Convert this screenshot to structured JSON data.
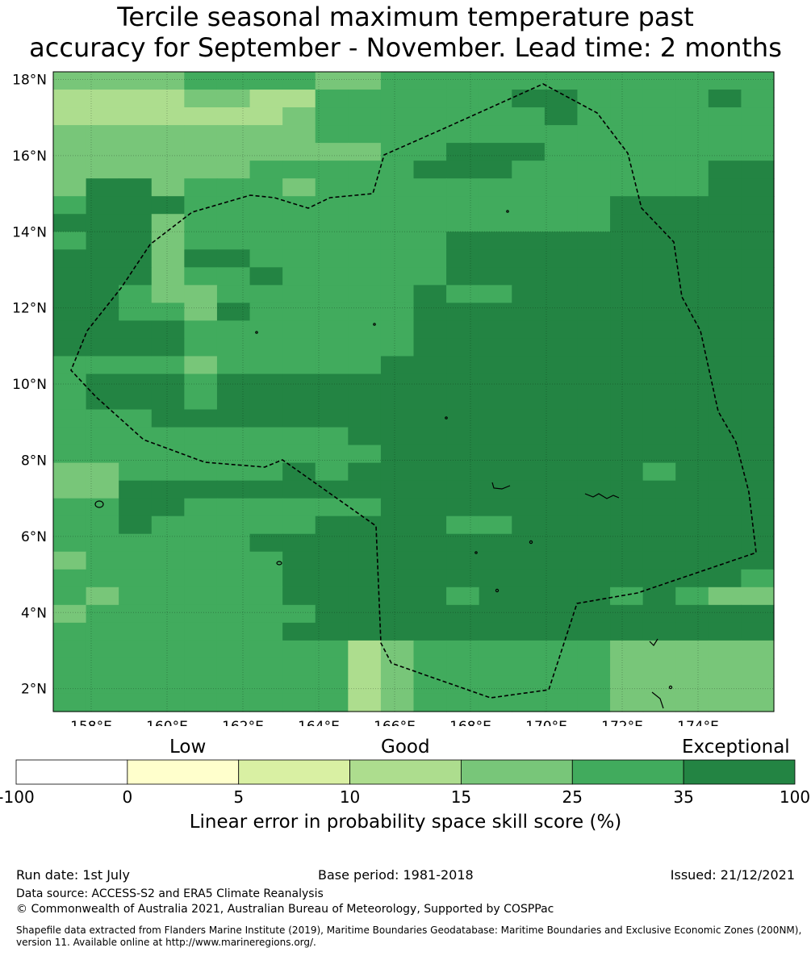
{
  "title_line1": "Tercile seasonal maximum temperature past",
  "title_line2": "accuracy for September - November. Lead time: 2 months",
  "map": {
    "lon_labels": [
      "158°E",
      "160°E",
      "162°E",
      "164°E",
      "166°E",
      "168°E",
      "170°E",
      "172°E",
      "174°E"
    ],
    "lat_labels": [
      "18°N",
      "16°N",
      "14°N",
      "12°N",
      "10°N",
      "8°N",
      "6°N",
      "4°N",
      "2°N"
    ],
    "lon_range": [
      157,
      176
    ],
    "lat_range": [
      1.4,
      18.2
    ],
    "grid_rows": [
      "3333444433444444444444",
      "2222332244444455444454",
      "2222222344444445444444",
      "3333333344444444444444",
      "3333333333445554444444",
      "3333334444455544444455",
      "3553444344444444444455",
      "4555444444444444455555",
      "5553444444444444455555",
      "4553444444445555555555",
      "5553554444445555555555",
      "5553445444445555555555",
      "5543344444454455555555",
      "5544354444455555555555",
      "5555444444455555555555",
      "5555444444455555555555",
      "4444344444555555555555",
      "4555455555555555555555",
      "4555455555555555555555",
      "4445555555555555555555",
      "4444444445555555555555",
      "4444444444555555555555",
      "3344444545555555554555",
      "3355555555555555555555",
      "4455444444555555555555",
      "4454444455554455555555",
      "4444445555555555555555",
      "3444444555555555555555",
      "4444444555555555555554",
      "4344444555554555545433",
      "3444444455555555555555",
      "4444444555555555555555",
      "4444444442344444433333",
      "4444444442344444433333",
      "4444444442344444433333",
      "4444444442344444433333"
    ]
  },
  "colorbar": {
    "categories": [
      "Low",
      "Good",
      "Exceptional"
    ],
    "ticks": [
      "-100",
      "0",
      "5",
      "10",
      "15",
      "25",
      "35",
      "100"
    ],
    "colors": [
      "#ffffff",
      "#ffffcc",
      "#d9f0a3",
      "#addd8e",
      "#78c679",
      "#41ab5d",
      "#238443"
    ],
    "label": "Linear error in probability space skill score (%)"
  },
  "footer": {
    "run_date": "Run date: 1st July",
    "base_period": "Base period: 1981-2018",
    "issued": "Issued: 21/12/2021",
    "data_source": "Data source: ACCESS-S2 and ERA5 Climate Reanalysis",
    "copyright": "© Commonwealth of Australia 2021, Australian Bureau of Meteorology, Supported by COSPPac",
    "shapefile": "Shapefile data extracted from Flanders Marine Institute (2019), Maritime Boundaries Geodatabase: Maritime Boundaries and Exclusive Economic Zones (200NM), version 11. Available online at http://www.marineregions.org/."
  }
}
